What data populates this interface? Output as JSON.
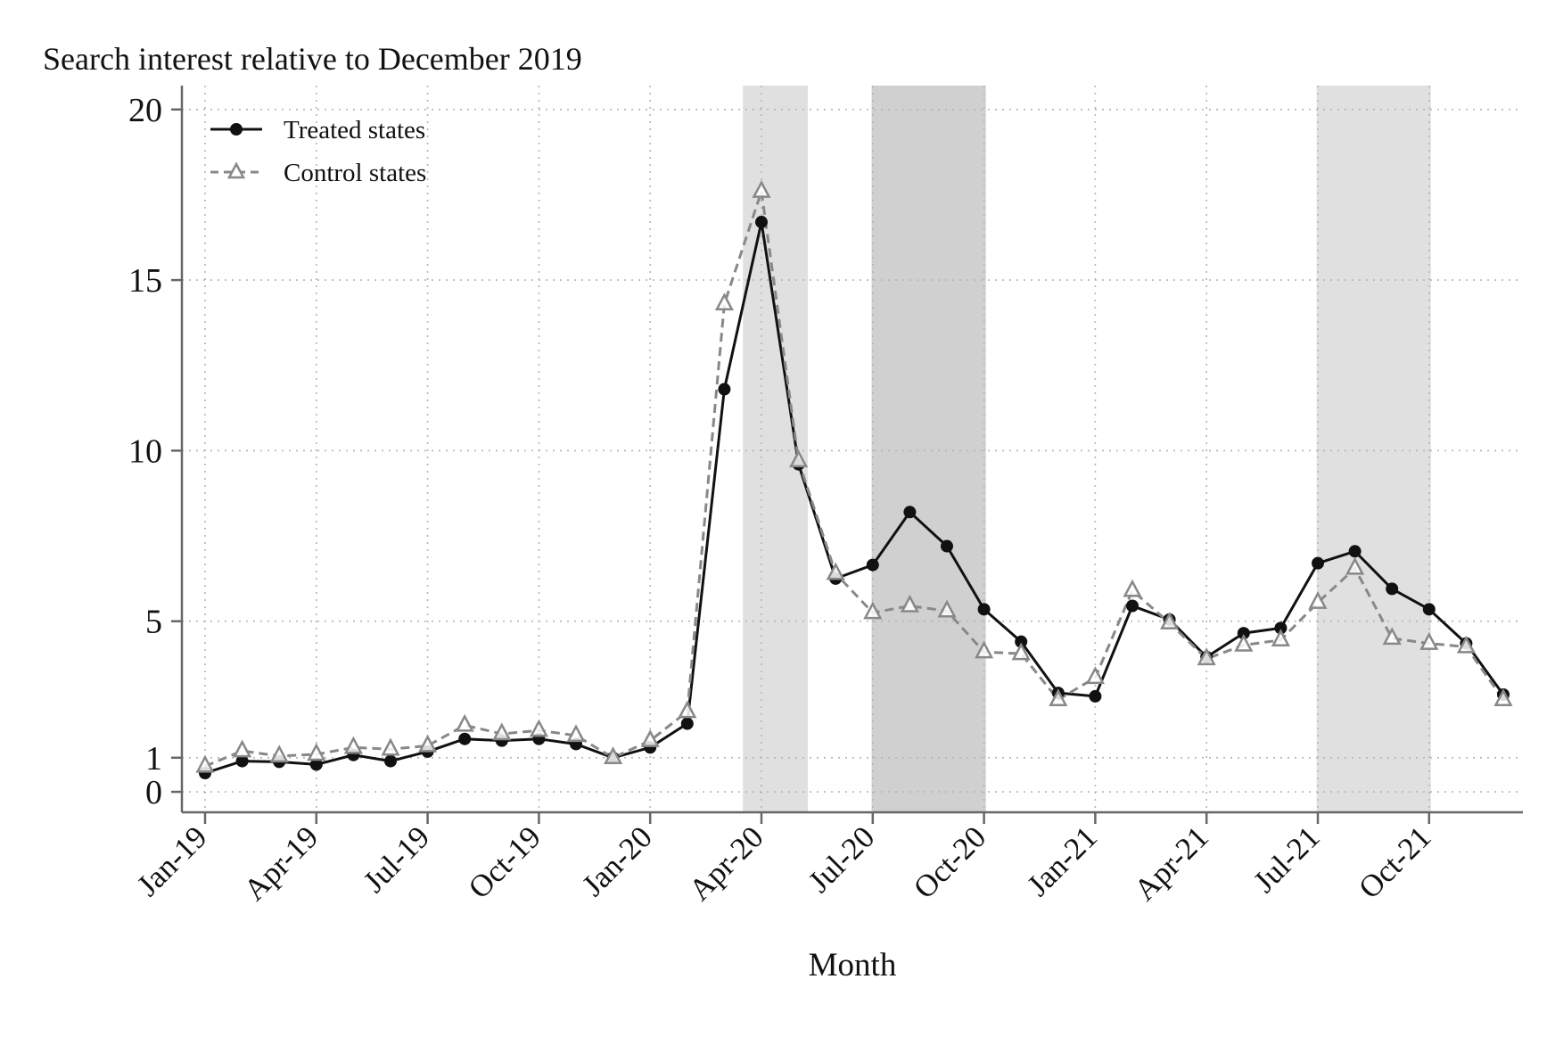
{
  "chart_data": {
    "type": "line",
    "title": "Search interest relative to December 2019",
    "xlabel": "Month",
    "ylabel": "",
    "ylim": [
      -0.6,
      20.7
    ],
    "yticks": [
      0,
      1,
      5,
      10,
      15,
      20
    ],
    "xticks": [
      {
        "index": 0,
        "label": "Jan-19"
      },
      {
        "index": 3,
        "label": "Apr-19"
      },
      {
        "index": 6,
        "label": "Jul-19"
      },
      {
        "index": 9,
        "label": "Oct-19"
      },
      {
        "index": 12,
        "label": "Jan-20"
      },
      {
        "index": 15,
        "label": "Apr-20"
      },
      {
        "index": 18,
        "label": "Jul-20"
      },
      {
        "index": 21,
        "label": "Oct-20"
      },
      {
        "index": 24,
        "label": "Jan-21"
      },
      {
        "index": 27,
        "label": "Apr-21"
      },
      {
        "index": 30,
        "label": "Jul-21"
      },
      {
        "index": 33,
        "label": "Oct-21"
      }
    ],
    "x": [
      "Jan-19",
      "Feb-19",
      "Mar-19",
      "Apr-19",
      "May-19",
      "Jun-19",
      "Jul-19",
      "Aug-19",
      "Sep-19",
      "Oct-19",
      "Nov-19",
      "Dec-19",
      "Jan-20",
      "Feb-20",
      "Mar-20",
      "Apr-20",
      "May-20",
      "Jun-20",
      "Jul-20",
      "Aug-20",
      "Sep-20",
      "Oct-20",
      "Nov-20",
      "Dec-20",
      "Jan-21",
      "Feb-21",
      "Mar-21",
      "Apr-21",
      "May-21",
      "Jun-21",
      "Jul-21",
      "Aug-21",
      "Sep-21",
      "Oct-21",
      "Nov-21",
      "Dec-21"
    ],
    "series": [
      {
        "name": "Treated states",
        "style": "solid",
        "marker": "circle",
        "color": "#111111",
        "values": [
          0.55,
          0.9,
          0.88,
          0.8,
          1.08,
          0.9,
          1.18,
          1.55,
          1.5,
          1.55,
          1.4,
          1.0,
          1.3,
          2.0,
          11.8,
          16.7,
          9.6,
          6.25,
          6.65,
          8.2,
          7.2,
          5.35,
          4.4,
          2.9,
          2.8,
          5.45,
          5.05,
          3.95,
          4.65,
          4.8,
          6.7,
          7.05,
          5.95,
          5.35,
          4.35,
          2.85
        ]
      },
      {
        "name": "Control states",
        "style": "dashed",
        "marker": "triangle",
        "color": "#888888",
        "values": [
          0.75,
          1.2,
          1.05,
          1.1,
          1.3,
          1.25,
          1.35,
          1.95,
          1.7,
          1.8,
          1.65,
          1.0,
          1.5,
          2.35,
          14.3,
          17.6,
          9.7,
          6.4,
          5.25,
          5.45,
          5.3,
          4.1,
          4.05,
          2.7,
          3.35,
          5.9,
          4.95,
          3.9,
          4.3,
          4.45,
          5.55,
          6.55,
          4.5,
          4.35,
          4.25,
          2.7
        ]
      }
    ],
    "shaded_regions": [
      {
        "start": 14.5,
        "end": 16.25,
        "shade": "#e0e0e0"
      },
      {
        "start": 17.97,
        "end": 21.05,
        "shade": "#d0d0d0"
      },
      {
        "start": 29.97,
        "end": 33.05,
        "shade": "#e0e0e0"
      }
    ],
    "grid": true,
    "legend_position": "top-left"
  }
}
